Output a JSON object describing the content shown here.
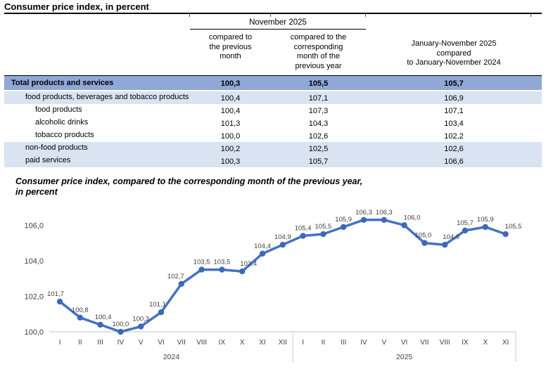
{
  "title": "Consumer price index, in percent",
  "table": {
    "group_header": "November 2025",
    "columns": [
      "compared to\nthe previous\nmonth",
      "compared to the\ncorresponding\nmonth of the\nprevious year",
      "January-November 2025\ncompared\nto January-November 2024"
    ],
    "rows": [
      {
        "label": "Total products and services",
        "values": [
          "100,3",
          "105,5",
          "105,7"
        ],
        "style": "total",
        "level": 0
      },
      {
        "label": "food products, beverages and tobacco products",
        "values": [
          "100,4",
          "107,1",
          "106,9"
        ],
        "style": "light",
        "level": 1
      },
      {
        "label": "food products",
        "values": [
          "100,4",
          "107,3",
          "107,1"
        ],
        "style": "white",
        "level": 2
      },
      {
        "label": "alcoholic drinks",
        "values": [
          "101,3",
          "104,3",
          "103,4"
        ],
        "style": "white",
        "level": 2
      },
      {
        "label": "tobacco products",
        "values": [
          "100,0",
          "102,6",
          "102,2"
        ],
        "style": "white",
        "level": 2
      },
      {
        "label": "non-food products",
        "values": [
          "100,2",
          "102,5",
          "102,6"
        ],
        "style": "light",
        "level": 1
      },
      {
        "label": "paid services",
        "values": [
          "100,3",
          "105,7",
          "106,6"
        ],
        "style": "light",
        "level": 1
      }
    ],
    "colors": {
      "total_row_bg": "#8FA8D6",
      "shaded_row_bg": "#D9E3F2"
    }
  },
  "chart": {
    "title": "Consumer price index, compared to the corresponding month of the previous year,\nin percent"
  },
  "chart_data": {
    "type": "line",
    "title": "Consumer price index, compared to the corresponding month of the previous year, in percent",
    "categories": [
      {
        "year": "2024",
        "months": [
          "I",
          "II",
          "III",
          "IV",
          "V",
          "VI",
          "VII",
          "VIII",
          "IX",
          "X",
          "XI",
          "XII"
        ]
      },
      {
        "year": "2025",
        "months": [
          "I",
          "II",
          "III",
          "IV",
          "V",
          "VI",
          "VII",
          "VIII",
          "IX",
          "X",
          "XI"
        ]
      }
    ],
    "values": [
      101.7,
      100.8,
      100.4,
      100.0,
      100.3,
      101.1,
      102.7,
      103.5,
      103.5,
      103.4,
      104.4,
      104.9,
      105.4,
      105.5,
      105.9,
      106.3,
      106.3,
      106.0,
      105.0,
      104.9,
      105.7,
      105.9,
      105.5
    ],
    "point_labels": [
      "101,7",
      "100,8",
      "100,4",
      "100,0",
      "100,3",
      "101,1",
      "102,7",
      "103,5",
      "103,5",
      "103,4",
      "104,4",
      "104,9",
      "105,4",
      "105,5",
      "105,9",
      "106,3",
      "106,3",
      "106,0",
      "105,0",
      "104,9",
      "105,7",
      "105,9",
      "105,5"
    ],
    "yticks": [
      "100,0",
      "102,0",
      "104,0",
      "106,0"
    ],
    "ylim": [
      100,
      106.6
    ],
    "grid": false,
    "legend": "none",
    "line_color": "#4472C4",
    "marker_color": "#3E68B8",
    "axis_color": "#BFBFBF",
    "label_color": "#3F3F3F"
  }
}
